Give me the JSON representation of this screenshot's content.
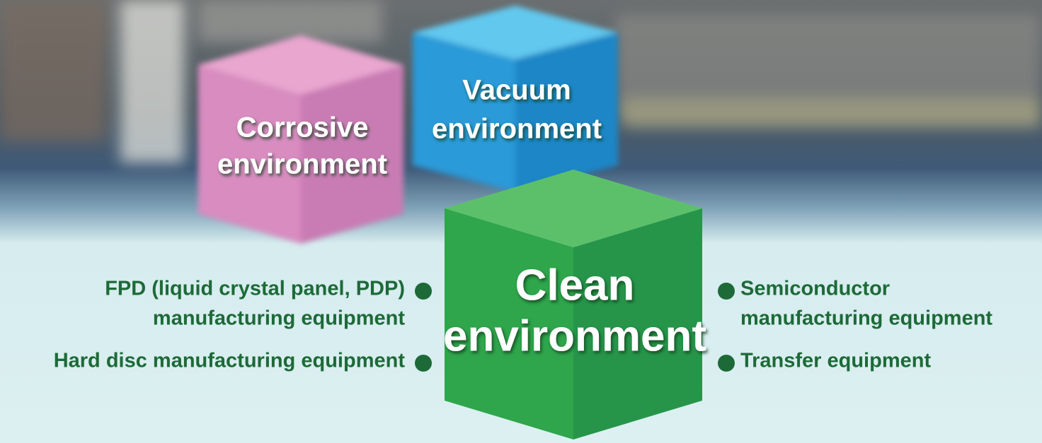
{
  "cubes": [
    {
      "lines": [
        "Corrosive",
        "environment"
      ]
    },
    {
      "lines": [
        "Vacuum",
        "environment"
      ]
    },
    {
      "lines": [
        "Clean",
        "environment"
      ]
    }
  ],
  "left_items": [
    {
      "lines": [
        "FPD (liquid crystal panel, PDP)",
        "manufacturing equipment"
      ]
    },
    {
      "lines": [
        "Hard disc manufacturing equipment"
      ]
    }
  ],
  "right_items": [
    {
      "lines": [
        "Semiconductor",
        "manufacturing equipment"
      ]
    },
    {
      "lines": [
        "Transfer equipment"
      ]
    }
  ]
}
